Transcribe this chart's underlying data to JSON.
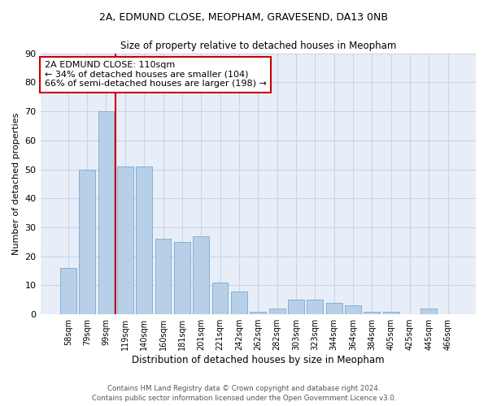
{
  "title1": "2A, EDMUND CLOSE, MEOPHAM, GRAVESEND, DA13 0NB",
  "title2": "Size of property relative to detached houses in Meopham",
  "xlabel": "Distribution of detached houses by size in Meopham",
  "ylabel": "Number of detached properties",
  "categories": [
    "58sqm",
    "79sqm",
    "99sqm",
    "119sqm",
    "140sqm",
    "160sqm",
    "181sqm",
    "201sqm",
    "221sqm",
    "242sqm",
    "262sqm",
    "282sqm",
    "303sqm",
    "323sqm",
    "344sqm",
    "364sqm",
    "384sqm",
    "405sqm",
    "425sqm",
    "445sqm",
    "466sqm"
  ],
  "values": [
    16,
    50,
    70,
    51,
    51,
    26,
    25,
    27,
    11,
    8,
    1,
    2,
    5,
    5,
    4,
    3,
    1,
    1,
    0,
    2,
    0
  ],
  "bar_color": "#b8cfe8",
  "bar_edge_color": "#7aaad0",
  "vline_x": 2.5,
  "vline_color": "#cc0000",
  "annotation_text": "2A EDMUND CLOSE: 110sqm\n← 34% of detached houses are smaller (104)\n66% of semi-detached houses are larger (198) →",
  "annotation_box_color": "#ffffff",
  "annotation_box_edge": "#cc0000",
  "ylim": [
    0,
    90
  ],
  "yticks": [
    0,
    10,
    20,
    30,
    40,
    50,
    60,
    70,
    80,
    90
  ],
  "ax_bg_color": "#e8eef8",
  "background_color": "#ffffff",
  "grid_color": "#c8d4e8",
  "footer1": "Contains HM Land Registry data © Crown copyright and database right 2024.",
  "footer2": "Contains public sector information licensed under the Open Government Licence v3.0."
}
